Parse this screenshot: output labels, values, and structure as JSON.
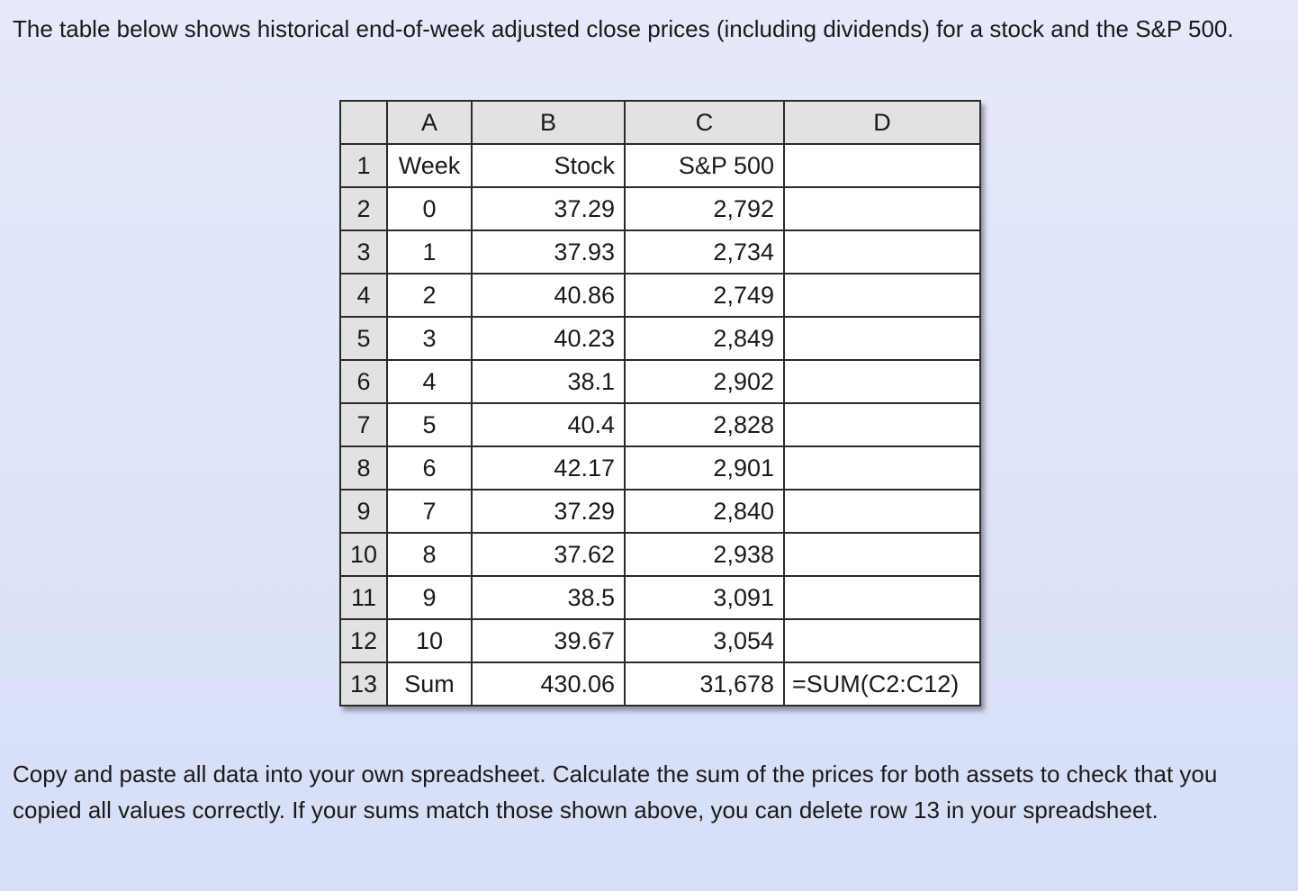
{
  "intro_text": "The table below shows historical end-of-week adjusted close prices (including dividends) for a stock and the S&P 500.",
  "spreadsheet": {
    "column_headers": [
      "A",
      "B",
      "C",
      "D"
    ],
    "rows": [
      {
        "row": "1",
        "a": "Week",
        "b": "Stock",
        "c": "S&P 500",
        "d": ""
      },
      {
        "row": "2",
        "a": "0",
        "b": "37.29",
        "c": "2,792",
        "d": ""
      },
      {
        "row": "3",
        "a": "1",
        "b": "37.93",
        "c": "2,734",
        "d": ""
      },
      {
        "row": "4",
        "a": "2",
        "b": "40.86",
        "c": "2,749",
        "d": ""
      },
      {
        "row": "5",
        "a": "3",
        "b": "40.23",
        "c": "2,849",
        "d": ""
      },
      {
        "row": "6",
        "a": "4",
        "b": "38.1",
        "c": "2,902",
        "d": ""
      },
      {
        "row": "7",
        "a": "5",
        "b": "40.4",
        "c": "2,828",
        "d": ""
      },
      {
        "row": "8",
        "a": "6",
        "b": "42.17",
        "c": "2,901",
        "d": ""
      },
      {
        "row": "9",
        "a": "7",
        "b": "37.29",
        "c": "2,840",
        "d": ""
      },
      {
        "row": "10",
        "a": "8",
        "b": "37.62",
        "c": "2,938",
        "d": ""
      },
      {
        "row": "11",
        "a": "9",
        "b": "38.5",
        "c": "3,091",
        "d": ""
      },
      {
        "row": "12",
        "a": "10",
        "b": "39.67",
        "c": "3,054",
        "d": ""
      },
      {
        "row": "13",
        "a": "Sum",
        "b": "430.06",
        "c": "31,678",
        "d": "=SUM(C2:C12)"
      }
    ]
  },
  "outro_text": "Copy and paste all data into your own spreadsheet. Calculate the sum of the prices for both assets to check that you copied all values correctly. If your sums match those shown above, you can delete row 13 in your spreadsheet."
}
